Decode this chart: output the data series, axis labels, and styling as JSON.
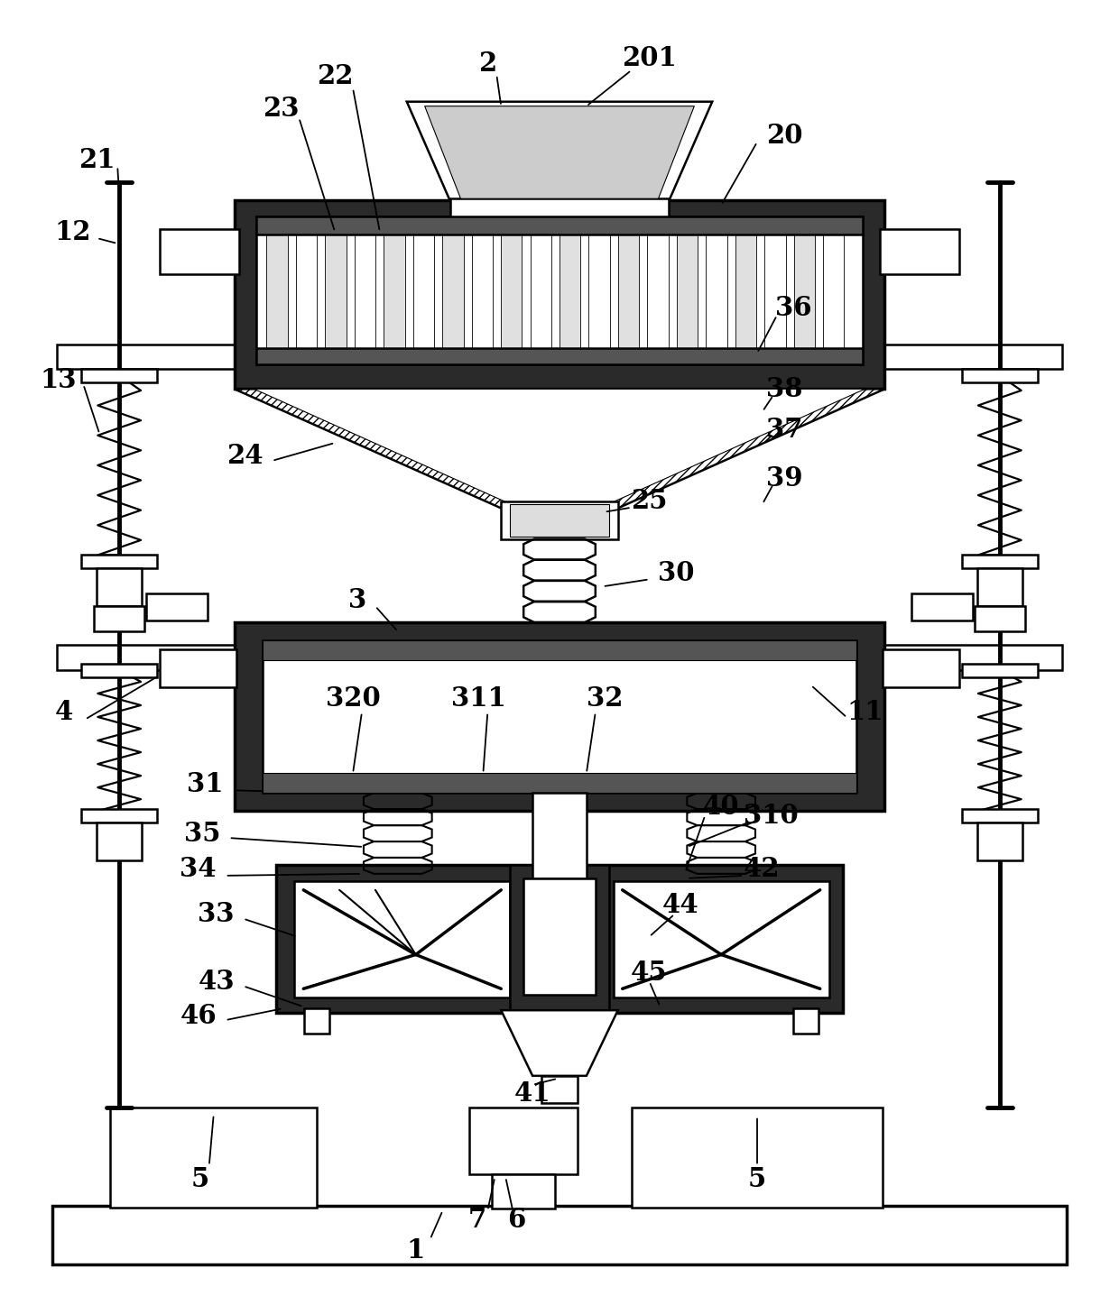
{
  "bg_color": "#ffffff",
  "lc": "#000000",
  "figsize": [
    12.4,
    14.37
  ],
  "dpi": 100
}
